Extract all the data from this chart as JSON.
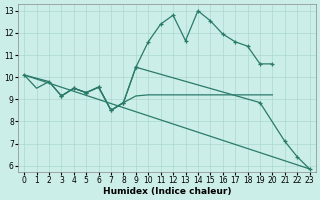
{
  "xlabel": "Humidex (Indice chaleur)",
  "xlim": [
    -0.5,
    23.5
  ],
  "ylim": [
    5.7,
    13.3
  ],
  "yticks": [
    6,
    7,
    8,
    9,
    10,
    11,
    12,
    13
  ],
  "xticks": [
    0,
    1,
    2,
    3,
    4,
    5,
    6,
    7,
    8,
    9,
    10,
    11,
    12,
    13,
    14,
    15,
    16,
    17,
    18,
    19,
    20,
    21,
    22,
    23
  ],
  "bg_color": "#cceee8",
  "line_color": "#2a7a6a",
  "line1_x": [
    0,
    2,
    3,
    4,
    5,
    6,
    7,
    8,
    9,
    10,
    11,
    12,
    13,
    14,
    15,
    16,
    17,
    18,
    19,
    20
  ],
  "line1_y": [
    10.1,
    9.8,
    9.15,
    9.5,
    9.3,
    9.55,
    8.5,
    8.85,
    10.45,
    11.6,
    12.4,
    12.8,
    11.65,
    13.0,
    12.55,
    11.95,
    11.6,
    11.4,
    10.6,
    10.6
  ],
  "line2_x": [
    0,
    1,
    2,
    3,
    4,
    5,
    6,
    7,
    8,
    9,
    10,
    11,
    12,
    13,
    14,
    15,
    16,
    17,
    18,
    19,
    20
  ],
  "line2_y": [
    10.1,
    9.5,
    9.8,
    9.15,
    9.5,
    9.3,
    9.55,
    8.5,
    8.85,
    9.15,
    9.2,
    9.2,
    9.2,
    9.2,
    9.2,
    9.2,
    9.2,
    9.2,
    9.2,
    9.2,
    9.2
  ],
  "line3_x": [
    0,
    23
  ],
  "line3_y": [
    10.1,
    5.85
  ],
  "line4_x": [
    3,
    4,
    5,
    6,
    7,
    8,
    9,
    19,
    21,
    22,
    23
  ],
  "line4_y": [
    9.15,
    9.5,
    9.3,
    9.55,
    8.5,
    8.85,
    10.45,
    8.85,
    7.1,
    6.4,
    5.85
  ]
}
